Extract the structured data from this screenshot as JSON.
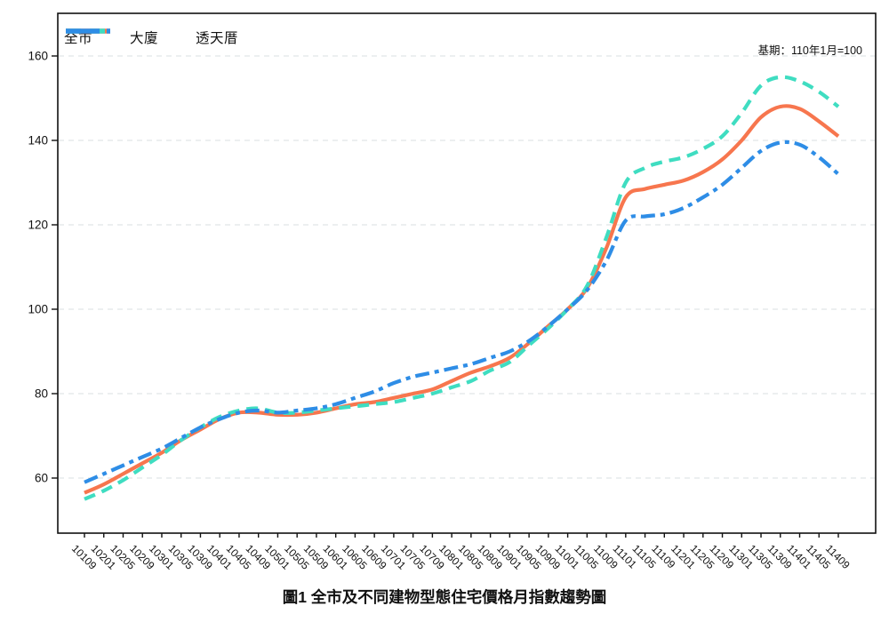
{
  "figure": {
    "title": "圖1 全市及不同建物型態住宅價格月指數趨勢圖",
    "annotation": "基期：110年1月=100"
  },
  "chart_data": {
    "type": "line",
    "title": "圖1 全市及不同建物型態住宅價格月指數趨勢圖",
    "note": "基期：110年1月=100",
    "legend_position": "top-left inside plot, horizontal",
    "grid": "horizontal dashed gridlines only",
    "ylim": [
      47,
      170
    ],
    "yticks": [
      60,
      80,
      100,
      120,
      140,
      160
    ],
    "x_tick_labels": [
      "10109",
      "10201",
      "10205",
      "10209",
      "10301",
      "10305",
      "10309",
      "10401",
      "10405",
      "10409",
      "10501",
      "10505",
      "10509",
      "10601",
      "10605",
      "10609",
      "10701",
      "10705",
      "10709",
      "10801",
      "10805",
      "10809",
      "10901",
      "10905",
      "10909",
      "11001",
      "11005",
      "11009",
      "11101",
      "11105",
      "11109",
      "11201",
      "11205",
      "11209",
      "11301",
      "11305",
      "11309",
      "11401",
      "11405",
      "11409"
    ],
    "series": [
      {
        "name": "全市",
        "color": "#F7764E",
        "style": "solid",
        "values": [
          56.5,
          58.5,
          61,
          63.5,
          66,
          69,
          71.5,
          74,
          75.5,
          75.5,
          75,
          75,
          75.5,
          76.5,
          77.5,
          78,
          79,
          80,
          81,
          83,
          85,
          86.5,
          88.5,
          92,
          96,
          100,
          105,
          114.5,
          126.5,
          128.5,
          129.5,
          130.5,
          132.5,
          135.5,
          140,
          145.5,
          148,
          147.5,
          144.5,
          141
        ]
      },
      {
        "name": "大廈",
        "color": "#3FDDC1",
        "style": "dashed",
        "values": [
          55,
          57,
          59.5,
          62.5,
          65.5,
          69,
          72,
          74.5,
          76,
          76.5,
          75.5,
          75.5,
          76,
          76.5,
          77,
          77.5,
          78,
          79,
          80,
          81.5,
          83,
          85.5,
          87.5,
          91.5,
          95.5,
          100,
          105.5,
          117,
          130,
          133.5,
          135,
          136,
          138,
          141,
          146.5,
          153,
          155,
          154,
          151.5,
          148
        ]
      },
      {
        "name": "透天厝",
        "color": "#2E8DE6",
        "style": "dashdot",
        "values": [
          59,
          61,
          63,
          65,
          67,
          69.5,
          72,
          74,
          75.5,
          76,
          75.5,
          76,
          76.5,
          77.5,
          79,
          80.5,
          82.5,
          84,
          85,
          86,
          87,
          88.5,
          90,
          92.5,
          96,
          100,
          104.5,
          111.5,
          121,
          122,
          122.5,
          124,
          126.5,
          129.5,
          133.5,
          137.5,
          139.5,
          139,
          136,
          132
        ]
      }
    ]
  }
}
